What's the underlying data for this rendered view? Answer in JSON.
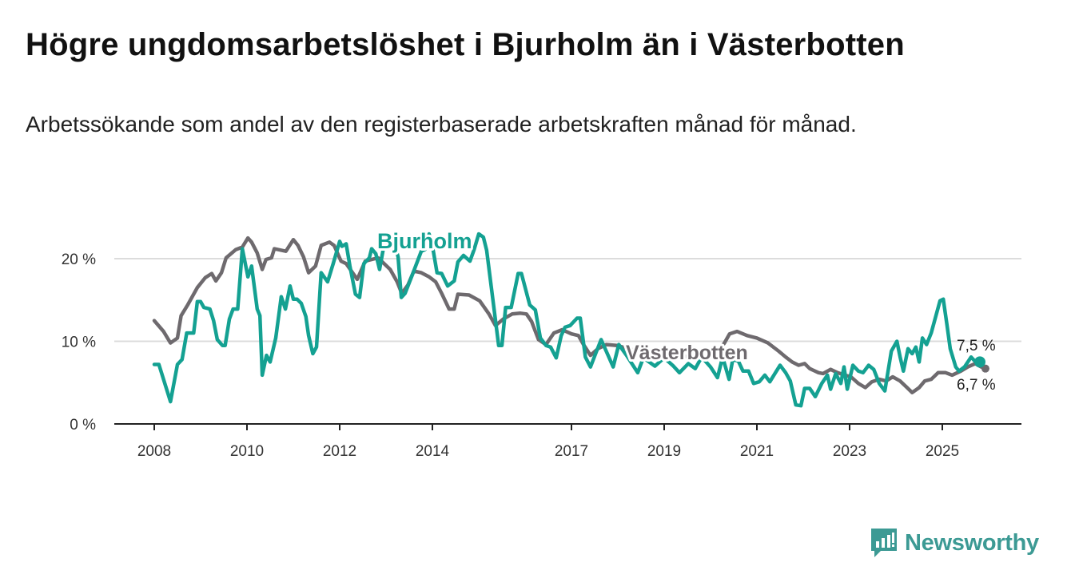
{
  "title": "Högre ungdomsarbetslöshet i Bjurholm än i Västerbotten",
  "subtitle": "Arbetssökande som andel av den registerbaserade arbetskraften månad för månad.",
  "brand": {
    "name": "Newsworthy",
    "color": "#3c9a94"
  },
  "chart_data": {
    "type": "line",
    "title": "Högre ungdomsarbetslöshet i Bjurholm än i Västerbotten",
    "xlabel": "",
    "ylabel": "",
    "ylim": [
      0,
      22
    ],
    "xlim": [
      2007.15,
      2026.75
    ],
    "y_ticks": [
      {
        "value": 0,
        "label": "0 %"
      },
      {
        "value": 10,
        "label": "10 %"
      },
      {
        "value": 20,
        "label": "20 %"
      }
    ],
    "x_ticks": [
      {
        "value": 2008,
        "label": "2008"
      },
      {
        "value": 2010,
        "label": "2010"
      },
      {
        "value": 2012,
        "label": "2012"
      },
      {
        "value": 2014,
        "label": "2014"
      },
      {
        "value": 2017,
        "label": "2017"
      },
      {
        "value": 2019,
        "label": "2019"
      },
      {
        "value": 2021,
        "label": "2021"
      },
      {
        "value": 2023,
        "label": "2023"
      },
      {
        "value": 2025,
        "label": "2025"
      }
    ],
    "grid": true,
    "series": [
      {
        "name": "Västerbotten",
        "color": "#6e6a6e",
        "end_label": "6,7 %",
        "x": [
          2008.0,
          2008.2,
          2008.35,
          2008.5,
          2008.58,
          2008.72,
          2008.93,
          2009.1,
          2009.24,
          2009.33,
          2009.45,
          2009.55,
          2009.76,
          2009.9,
          2010.02,
          2010.1,
          2010.22,
          2010.33,
          2010.41,
          2010.53,
          2010.59,
          2010.84,
          2011.0,
          2011.1,
          2011.22,
          2011.33,
          2011.48,
          2011.6,
          2011.78,
          2011.88,
          2012.03,
          2012.14,
          2012.38,
          2012.55,
          2012.83,
          2013.09,
          2013.24,
          2013.34,
          2013.47,
          2013.6,
          2013.76,
          2013.93,
          2014.07,
          2014.2,
          2014.36,
          2014.47,
          2014.55,
          2014.79,
          2015.02,
          2015.22,
          2015.36,
          2015.53,
          2015.72,
          2015.9,
          2016.03,
          2016.14,
          2016.29,
          2016.45,
          2016.62,
          2016.8,
          2017.0,
          2017.15,
          2017.26,
          2017.41,
          2017.57,
          2017.75,
          2017.98,
          2018.1,
          2018.3,
          2018.6,
          2019.0,
          2019.4,
          2019.8,
          2020.1,
          2020.3,
          2020.41,
          2020.57,
          2020.79,
          2021.0,
          2021.24,
          2021.47,
          2021.62,
          2021.76,
          2021.9,
          2022.03,
          2022.14,
          2022.33,
          2022.43,
          2022.59,
          2022.74,
          2022.9,
          2023.03,
          2023.19,
          2023.34,
          2023.48,
          2023.64,
          2023.79,
          2023.93,
          2024.09,
          2024.24,
          2024.35,
          2024.5,
          2024.62,
          2024.76,
          2024.91,
          2025.07,
          2025.21,
          2025.4,
          2025.55,
          2025.71,
          2025.84,
          2025.93
        ],
        "y": [
          12.5,
          11.2,
          9.8,
          10.4,
          13.1,
          14.4,
          16.5,
          17.7,
          18.2,
          17.3,
          18.3,
          20.1,
          21.1,
          21.4,
          22.5,
          22.0,
          20.7,
          18.7,
          19.9,
          20.1,
          21.2,
          20.9,
          22.3,
          21.6,
          20.2,
          18.3,
          19.1,
          21.6,
          22.0,
          21.6,
          19.7,
          19.4,
          17.5,
          19.7,
          20.1,
          18.7,
          17.2,
          15.8,
          16.8,
          18.5,
          18.3,
          17.8,
          17.2,
          15.8,
          13.9,
          13.9,
          15.7,
          15.6,
          14.9,
          13.3,
          11.9,
          12.7,
          13.3,
          13.4,
          13.3,
          12.4,
          10.2,
          9.6,
          11.0,
          11.4,
          10.9,
          10.7,
          9.6,
          8.3,
          9.1,
          9.6,
          9.5,
          9.3,
          9.0,
          8.6,
          8.5,
          8.2,
          8.0,
          8.3,
          9.8,
          10.9,
          11.2,
          10.7,
          10.4,
          9.8,
          8.8,
          8.1,
          7.5,
          7.1,
          7.3,
          6.7,
          6.2,
          6.1,
          6.6,
          6.2,
          5.9,
          5.7,
          4.9,
          4.4,
          5.1,
          5.4,
          5.2,
          5.7,
          5.2,
          4.4,
          3.8,
          4.4,
          5.2,
          5.4,
          6.2,
          6.2,
          5.9,
          6.4,
          6.9,
          7.3,
          6.9,
          6.7
        ]
      },
      {
        "name": "Bjurholm",
        "color": "#14a192",
        "end_label": "7,5 %",
        "x": [
          2008.0,
          2008.1,
          2008.35,
          2008.5,
          2008.6,
          2008.7,
          2008.85,
          2008.93,
          2009.0,
          2009.07,
          2009.2,
          2009.28,
          2009.36,
          2009.47,
          2009.53,
          2009.62,
          2009.7,
          2009.8,
          2009.9,
          2010.02,
          2010.1,
          2010.22,
          2010.28,
          2010.33,
          2010.42,
          2010.5,
          2010.62,
          2010.74,
          2010.83,
          2010.93,
          2011.0,
          2011.08,
          2011.17,
          2011.27,
          2011.33,
          2011.42,
          2011.5,
          2011.6,
          2011.74,
          2011.86,
          2012.0,
          2012.05,
          2012.14,
          2012.22,
          2012.34,
          2012.43,
          2012.52,
          2012.64,
          2012.69,
          2012.78,
          2012.86,
          2013.0,
          2013.15,
          2013.26,
          2013.33,
          2013.41,
          2013.55,
          2013.76,
          2013.84,
          2013.93,
          2014.02,
          2014.1,
          2014.2,
          2014.33,
          2014.47,
          2014.55,
          2014.67,
          2014.81,
          2014.9,
          2015.0,
          2015.1,
          2015.17,
          2015.43,
          2015.5,
          2015.58,
          2015.7,
          2015.85,
          2015.92,
          2016.1,
          2016.22,
          2016.33,
          2016.45,
          2016.55,
          2016.67,
          2016.78,
          2016.86,
          2016.97,
          2017.12,
          2017.19,
          2017.3,
          2017.41,
          2017.52,
          2017.64,
          2017.75,
          2017.9,
          2018.02,
          2018.2,
          2018.43,
          2018.55,
          2018.8,
          2019.0,
          2019.2,
          2019.33,
          2019.52,
          2019.67,
          2019.81,
          2020.0,
          2020.15,
          2020.26,
          2020.4,
          2020.48,
          2020.6,
          2020.7,
          2020.82,
          2020.93,
          2021.05,
          2021.17,
          2021.28,
          2021.4,
          2021.5,
          2021.62,
          2021.72,
          2021.84,
          2021.95,
          2022.03,
          2022.14,
          2022.26,
          2022.4,
          2022.52,
          2022.59,
          2022.7,
          2022.81,
          2022.88,
          2022.95,
          2023.07,
          2023.19,
          2023.29,
          2023.41,
          2023.52,
          2023.64,
          2023.76,
          2023.9,
          2024.02,
          2024.09,
          2024.16,
          2024.26,
          2024.35,
          2024.43,
          2024.5,
          2024.57,
          2024.66,
          2024.76,
          2024.95,
          2025.02,
          2025.1,
          2025.17,
          2025.29,
          2025.36,
          2025.48,
          2025.62,
          2025.7,
          2025.81
        ],
        "y": [
          7.2,
          7.2,
          2.7,
          7.2,
          7.8,
          11.0,
          11.0,
          14.8,
          14.8,
          14.1,
          13.9,
          12.5,
          10.2,
          9.5,
          9.5,
          12.7,
          13.9,
          13.9,
          21.2,
          17.8,
          19.1,
          13.9,
          13.1,
          5.9,
          8.3,
          7.5,
          10.4,
          15.4,
          13.9,
          16.7,
          15.1,
          15.1,
          14.6,
          13.0,
          10.7,
          8.5,
          9.3,
          18.3,
          17.2,
          19.4,
          22.1,
          21.5,
          21.8,
          19.1,
          15.7,
          15.3,
          19.4,
          20.1,
          21.2,
          20.6,
          18.7,
          23.0,
          22.5,
          20.2,
          15.3,
          15.8,
          17.8,
          20.9,
          21.1,
          23.0,
          20.9,
          18.3,
          18.2,
          16.7,
          17.3,
          19.6,
          20.4,
          19.7,
          21.1,
          23.0,
          22.6,
          21.0,
          9.5,
          9.5,
          14.1,
          14.1,
          18.2,
          18.2,
          14.4,
          13.8,
          10.4,
          9.5,
          9.3,
          8.0,
          10.7,
          11.7,
          11.9,
          12.8,
          12.8,
          8.1,
          6.9,
          8.5,
          10.2,
          8.8,
          6.9,
          9.6,
          8.2,
          6.2,
          8.0,
          7.0,
          8.0,
          7.0,
          6.2,
          7.3,
          6.7,
          8.1,
          6.9,
          5.6,
          8.1,
          5.4,
          7.8,
          7.6,
          6.4,
          6.4,
          4.9,
          5.1,
          5.9,
          5.1,
          6.2,
          7.1,
          6.2,
          5.2,
          2.3,
          2.2,
          4.3,
          4.3,
          3.3,
          4.9,
          5.9,
          4.2,
          6.1,
          4.9,
          6.9,
          4.2,
          7.1,
          6.4,
          6.2,
          7.1,
          6.6,
          4.9,
          4.0,
          8.8,
          10.0,
          8.1,
          6.4,
          9.1,
          8.5,
          9.3,
          7.5,
          10.4,
          9.6,
          11.0,
          14.9,
          15.1,
          12.0,
          9.1,
          6.9,
          6.4,
          6.9,
          8.1,
          7.6,
          7.5
        ]
      }
    ]
  }
}
